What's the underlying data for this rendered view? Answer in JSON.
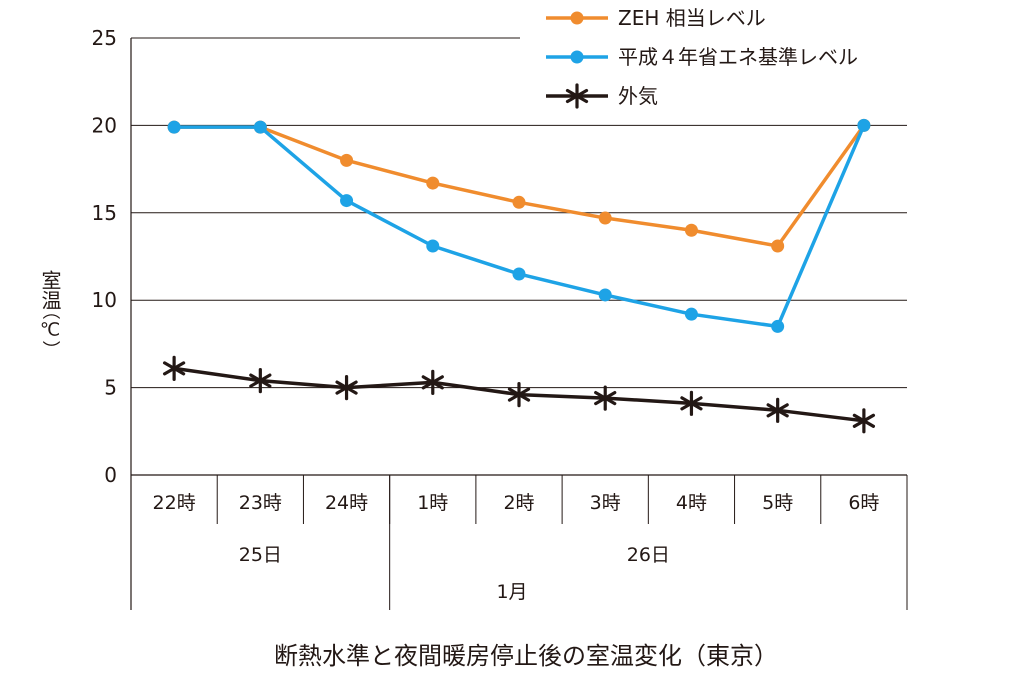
{
  "chart_data": {
    "type": "line",
    "title": "断熱水準と夜間暖房停止後の室温変化（東京）",
    "ylabel": "室温",
    "yunit": "（℃）",
    "ylim": [
      0,
      25
    ],
    "yticks": [
      0,
      5,
      10,
      15,
      20,
      25
    ],
    "grid": true,
    "legend_position": "top-right",
    "categories": [
      "22時",
      "23時",
      "24時",
      "1時",
      "2時",
      "3時",
      "4時",
      "5時",
      "6時"
    ],
    "day_groups": [
      {
        "label": "25日",
        "start": 0,
        "end": 2
      },
      {
        "label": "26日",
        "start": 3,
        "end": 8
      }
    ],
    "month_label": "1月",
    "series": [
      {
        "name": "ZEH 相当レベル",
        "color": "#f08c2e",
        "marker": "circle",
        "values": [
          19.9,
          19.9,
          18.0,
          16.7,
          15.6,
          14.7,
          14.0,
          13.1,
          20.0
        ]
      },
      {
        "name": "平成４年省エネ基準レベル",
        "color": "#1ea3e6",
        "marker": "circle",
        "values": [
          19.9,
          19.9,
          15.7,
          13.1,
          11.5,
          10.3,
          9.2,
          8.5,
          20.0
        ]
      },
      {
        "name": "外気",
        "color": "#231815",
        "marker": "asterisk",
        "values": [
          6.1,
          5.4,
          5.0,
          5.3,
          4.6,
          4.4,
          4.1,
          3.7,
          3.1
        ]
      }
    ]
  }
}
